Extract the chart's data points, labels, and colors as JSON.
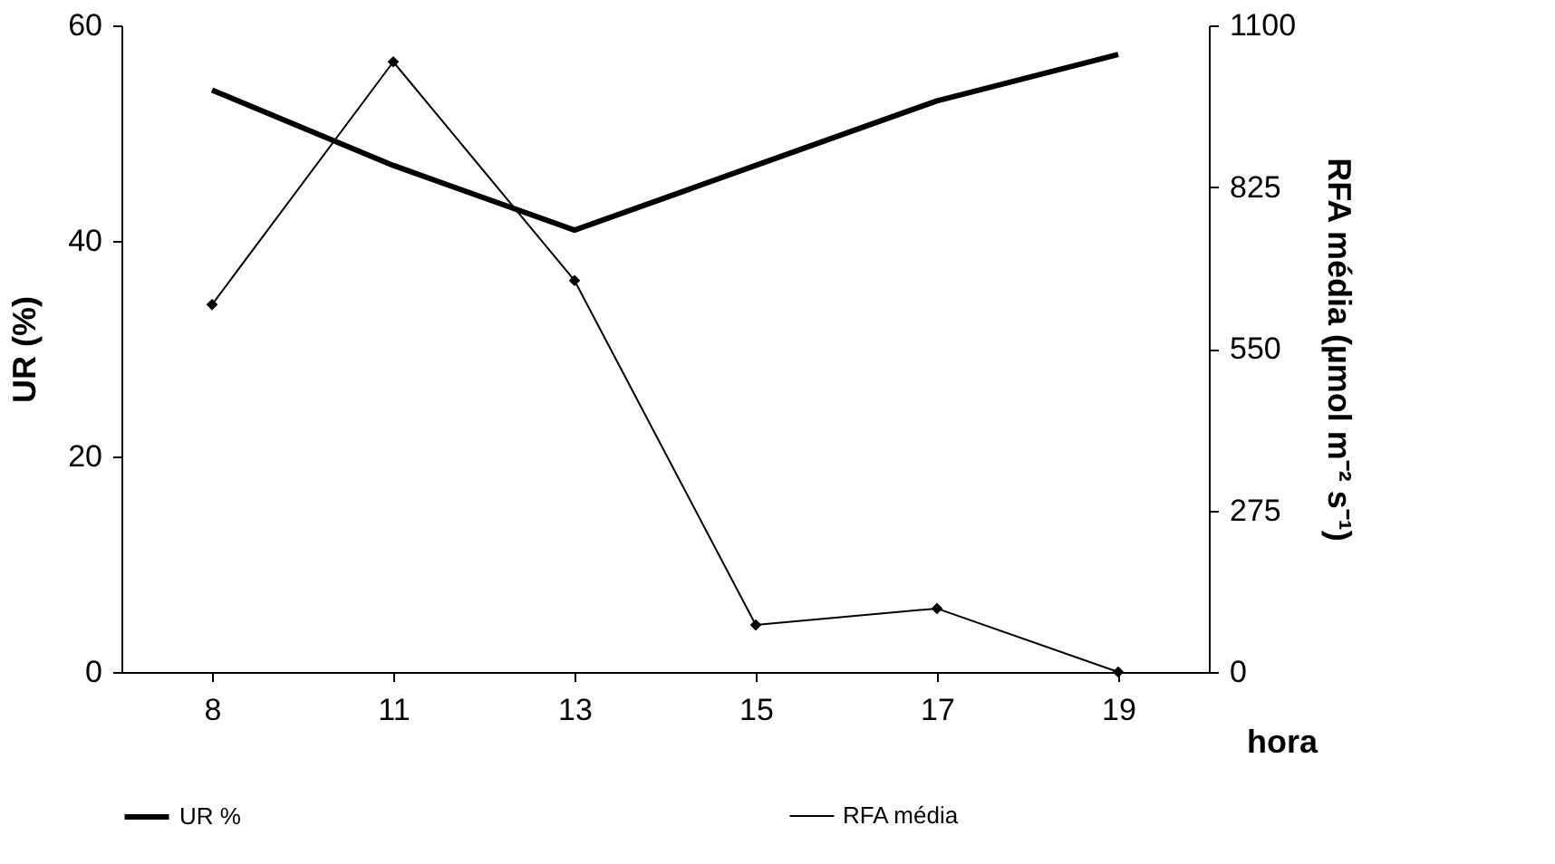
{
  "chart_data": {
    "type": "line",
    "categories": [
      "8",
      "11",
      "13",
      "15",
      "17",
      "19"
    ],
    "series": [
      {
        "name": "UR %",
        "color": "#000000",
        "values": [
          54,
          47,
          41,
          47,
          53,
          57.3
        ],
        "marker": "none"
      },
      {
        "name": "RFA média",
        "color": "#000000",
        "values": [
          625,
          1038,
          666,
          80,
          108,
          0
        ],
        "axis": "y2",
        "marker": "diamond"
      }
    ],
    "xlabel": "hora",
    "ylabel": "UR (%)",
    "y2label": "RFA média (µmol m⁻² s⁻¹)",
    "ylim": [
      0,
      60
    ],
    "yticks": [
      0,
      20,
      40,
      60
    ],
    "y2lim": [
      0,
      1100
    ],
    "y2ticks": [
      0,
      275,
      550,
      825,
      1100
    ],
    "legend": "bottom",
    "grid": false
  }
}
